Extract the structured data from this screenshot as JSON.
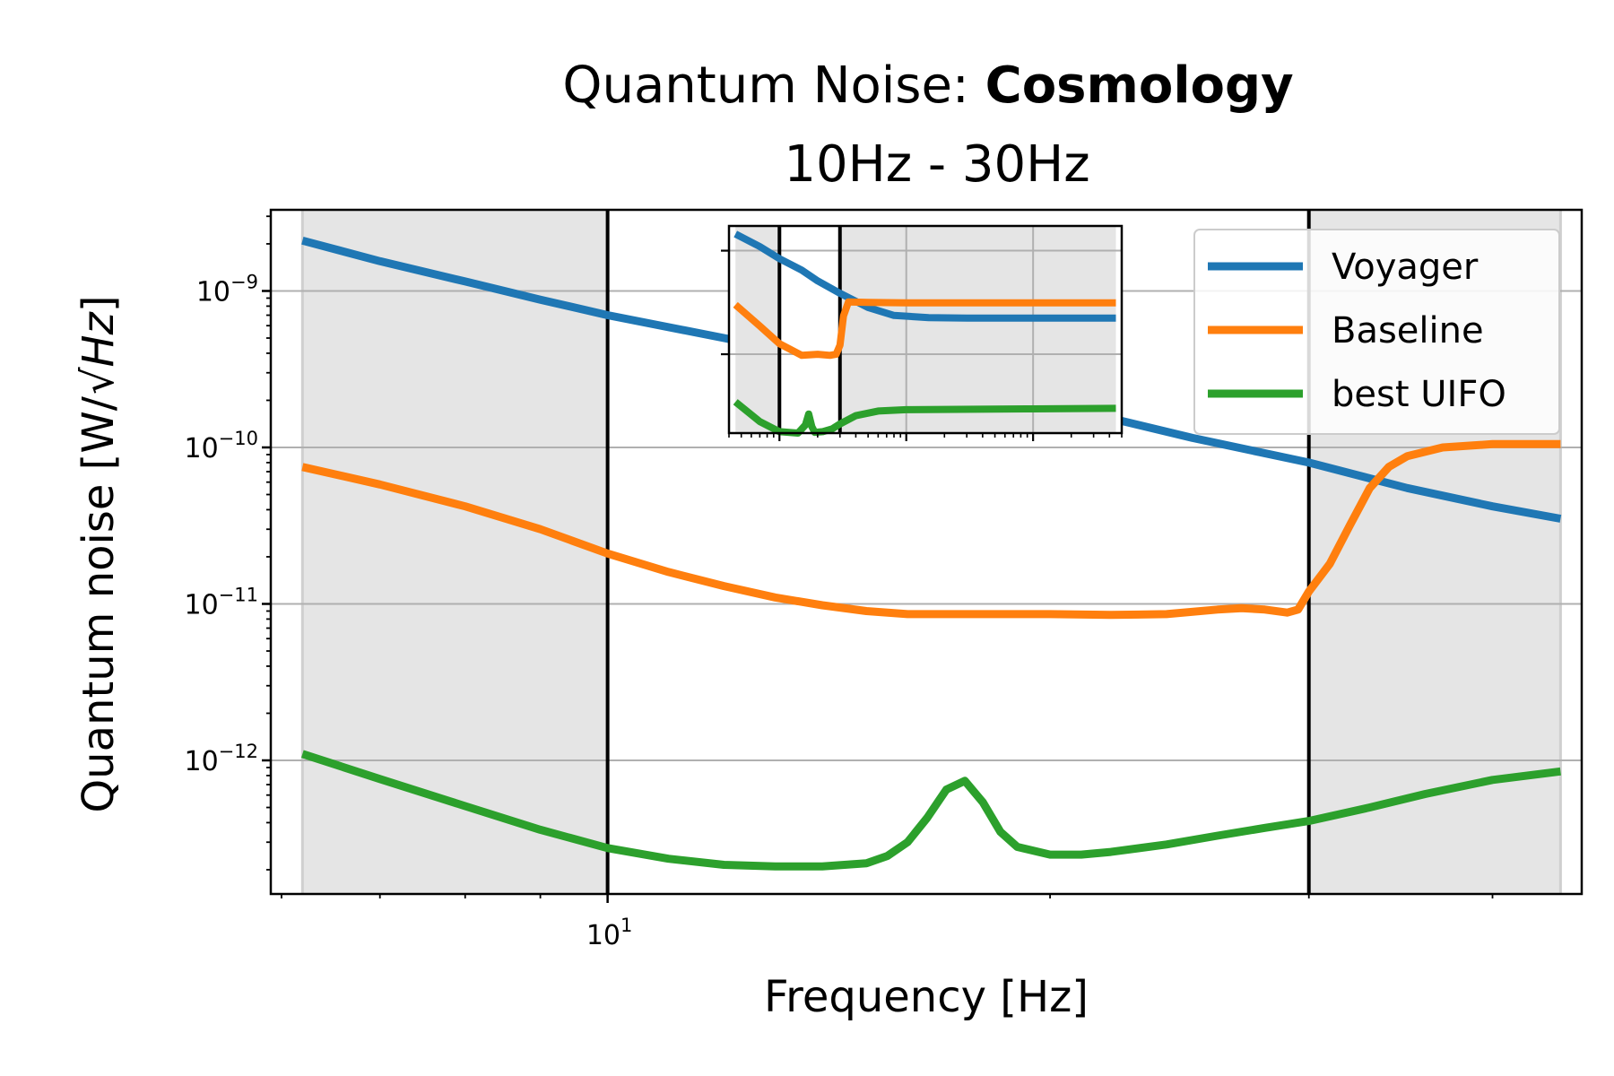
{
  "chart_data": {
    "type": "line",
    "title_prefix": "Quantum Noise: ",
    "title_bold": "Cosmology",
    "subtitle": "10Hz - 30Hz",
    "xlabel": "Frequency [Hz]",
    "ylabel_prefix": "Quantum noise [W/",
    "ylabel_sqrt": "Hz",
    "ylabel_suffix": "]",
    "x_scale": "log",
    "y_scale": "log",
    "xlim": [
      5.9,
      46
    ],
    "ylim": [
      1.4e-13,
      3.3e-09
    ],
    "x_tick_label": {
      "base": "10",
      "exp": "1"
    },
    "y_tick_labels": [
      {
        "value": 1e-09,
        "base": "10",
        "exp": "−9"
      },
      {
        "value": 1e-10,
        "base": "10",
        "exp": "−10"
      },
      {
        "value": 1e-11,
        "base": "10",
        "exp": "−11"
      },
      {
        "value": 1e-12,
        "base": "10",
        "exp": "−12"
      }
    ],
    "grid": "horizontal major lines",
    "legend_position": "top-right",
    "shaded_ranges": [
      [
        6.2,
        10
      ],
      [
        30,
        44.5
      ]
    ],
    "vertical_lines": [
      10,
      30
    ],
    "series": [
      {
        "name": "Voyager",
        "color": "#1f77b4",
        "x": [
          6.2,
          7,
          8,
          9,
          10,
          12,
          15,
          18,
          20,
          25,
          30,
          35,
          40,
          44.5
        ],
        "y": [
          2.1e-09,
          1.55e-09,
          1.15e-09,
          8.8e-10,
          7e-10,
          5e-10,
          3.3e-10,
          2.35e-10,
          1.9e-10,
          1.15e-10,
          8e-11,
          5.5e-11,
          4.2e-11,
          3.5e-11
        ]
      },
      {
        "name": "Baseline",
        "color": "#ff7f0e",
        "x": [
          6.2,
          7,
          8,
          9,
          10,
          11,
          12,
          13,
          14,
          15,
          16,
          18,
          20,
          22,
          24,
          26,
          27,
          28,
          29,
          29.5,
          30,
          31,
          32,
          33,
          34,
          35,
          37,
          40,
          44.5
        ],
        "y": [
          7.5e-11,
          5.8e-11,
          4.2e-11,
          3e-11,
          2.1e-11,
          1.6e-11,
          1.3e-11,
          1.1e-11,
          9.8e-12,
          9e-12,
          8.6e-12,
          8.6e-12,
          8.6e-12,
          8.5e-12,
          8.6e-12,
          9.2e-12,
          9.4e-12,
          9.2e-12,
          8.8e-12,
          9.2e-12,
          1.2e-11,
          1.8e-11,
          3.2e-11,
          5.5e-11,
          7.5e-11,
          8.8e-11,
          1e-10,
          1.05e-10,
          1.05e-10
        ]
      },
      {
        "name": "best UIFO",
        "color": "#2ca02c",
        "x": [
          6.2,
          7,
          8,
          9,
          10,
          11,
          12,
          13,
          14,
          15,
          15.5,
          16,
          16.5,
          17,
          17.5,
          18,
          18.5,
          19,
          20,
          21,
          22,
          24,
          26,
          28,
          30,
          33,
          36,
          40,
          44.5
        ],
        "y": [
          1.1e-12,
          7.6e-13,
          5.1e-13,
          3.6e-13,
          2.75e-13,
          2.35e-13,
          2.15e-13,
          2.1e-13,
          2.1e-13,
          2.2e-13,
          2.45e-13,
          3e-13,
          4.3e-13,
          6.5e-13,
          7.4e-13,
          5.4e-13,
          3.5e-13,
          2.8e-13,
          2.5e-13,
          2.5e-13,
          2.6e-13,
          2.9e-13,
          3.3e-13,
          3.7e-13,
          4.1e-13,
          5e-13,
          6.1e-13,
          7.5e-13,
          8.5e-13
        ]
      }
    ],
    "inset": {
      "type": "line",
      "description_scale": "log-log",
      "xlim": [
        4,
        5000
      ],
      "ylim": [
        3e-13,
        3e-09
      ],
      "shaded_ranges": [
        [
          4.5,
          10
        ],
        [
          30,
          4500
        ]
      ],
      "vertical_lines": [
        10,
        30
      ],
      "series": [
        {
          "name": "Voyager",
          "color": "#1f77b4",
          "x": [
            4.5,
            7,
            10,
            15,
            20,
            30,
            50,
            80,
            150,
            300,
            1000,
            4500
          ],
          "y": [
            2.1e-09,
            1.2e-09,
            7e-10,
            4.2e-10,
            2.6e-10,
            1.5e-10,
            8e-11,
            5.6e-11,
            5.1e-11,
            5e-11,
            5e-11,
            5e-11
          ]
        },
        {
          "name": "Baseline",
          "color": "#ff7f0e",
          "x": [
            4.5,
            7,
            10,
            15,
            20,
            25,
            28,
            30,
            32,
            35,
            50,
            100,
            1000,
            4500
          ],
          "y": [
            9e-11,
            3.5e-11,
            1.6e-11,
            9.5e-12,
            1e-11,
            9.5e-12,
            1e-11,
            1.5e-11,
            5.5e-11,
            1.02e-10,
            1e-10,
            9.8e-11,
            9.8e-11,
            9.8e-11
          ]
        },
        {
          "name": "best UIFO",
          "color": "#2ca02c",
          "x": [
            4.5,
            7,
            10,
            14,
            16,
            17,
            18,
            19,
            22,
            26,
            30,
            40,
            60,
            100,
            1000,
            4500
          ],
          "y": [
            1.2e-12,
            5e-13,
            3.2e-13,
            3e-13,
            4.3e-13,
            7e-13,
            4e-13,
            3.1e-13,
            3.2e-13,
            3.6e-13,
            4.5e-13,
            6.5e-13,
            8e-13,
            8.5e-13,
            8.8e-13,
            9e-13
          ]
        }
      ]
    }
  }
}
